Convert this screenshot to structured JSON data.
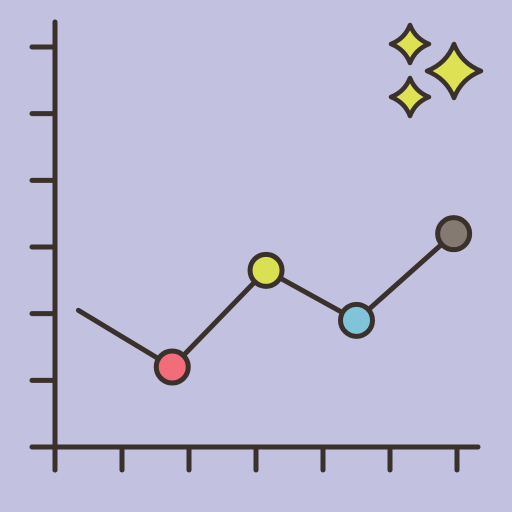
{
  "theme": {
    "background": "#c2c1df",
    "stroke": "#3a302c",
    "sparkle": "#dde153"
  },
  "decorations": {
    "sparkle_icon": "sparkle-icon"
  },
  "chart_data": {
    "type": "line",
    "grid": false,
    "legend": "none",
    "xlim": [
      0,
      6
    ],
    "ylim": [
      0,
      6
    ],
    "x_tick_count": 7,
    "y_tick_count": 6,
    "series": [
      {
        "line_color": "#3a302c",
        "points": [
          {
            "x": 0.35,
            "y": 2.05,
            "marker": false,
            "color": ""
          },
          {
            "x": 1.75,
            "y": 1.2,
            "marker": true,
            "color": "#f26c7a"
          },
          {
            "x": 3.15,
            "y": 2.65,
            "marker": true,
            "color": "#d9e052"
          },
          {
            "x": 4.5,
            "y": 1.9,
            "marker": true,
            "color": "#80c4d9"
          },
          {
            "x": 5.95,
            "y": 3.2,
            "marker": true,
            "color": "#857a72"
          }
        ]
      }
    ]
  }
}
